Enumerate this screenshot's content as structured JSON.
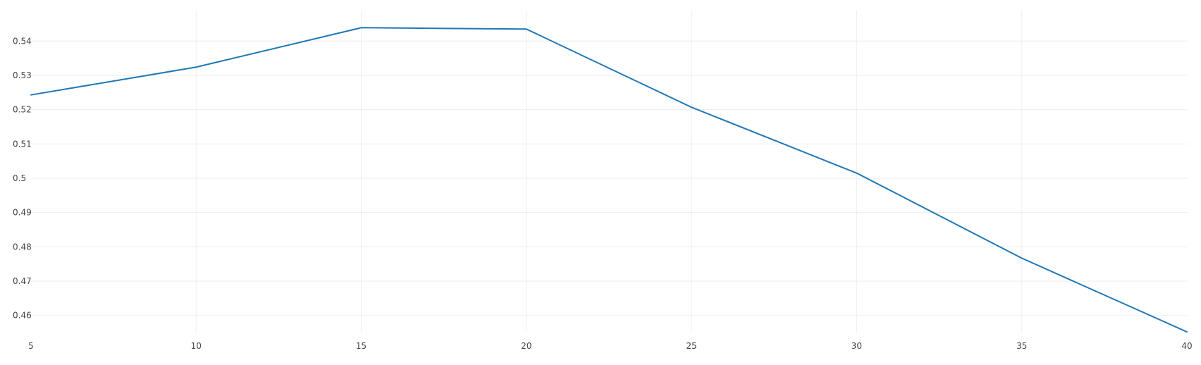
{
  "chart_data": {
    "type": "line",
    "title": "",
    "xlabel": "",
    "ylabel": "",
    "x": [
      5,
      10,
      15,
      20,
      25,
      30,
      35,
      40
    ],
    "series": [
      {
        "values": [
          0.5243,
          0.5324,
          0.5439,
          0.5435,
          0.5207,
          0.5015,
          0.4767,
          0.4552
        ]
      }
    ],
    "xlim": [
      5,
      40
    ],
    "ylim": [
      0.4552,
      0.5491
    ],
    "x_ticks": [
      5,
      10,
      15,
      20,
      25,
      30,
      35,
      40
    ],
    "x_tick_labels": [
      "5",
      "10",
      "15",
      "20",
      "25",
      "30",
      "35",
      "40"
    ],
    "y_ticks": [
      0.46,
      0.47,
      0.48,
      0.49,
      0.5,
      0.51,
      0.52,
      0.53,
      0.54
    ],
    "y_tick_labels": [
      "0.46",
      "0.47",
      "0.48",
      "0.49",
      "0.5",
      "0.51",
      "0.52",
      "0.53",
      "0.54"
    ],
    "grid": true,
    "legend": "none",
    "colors": {
      "line": "#1f77b4",
      "grid": "#eeeeee",
      "tick_text": "#444444"
    }
  }
}
